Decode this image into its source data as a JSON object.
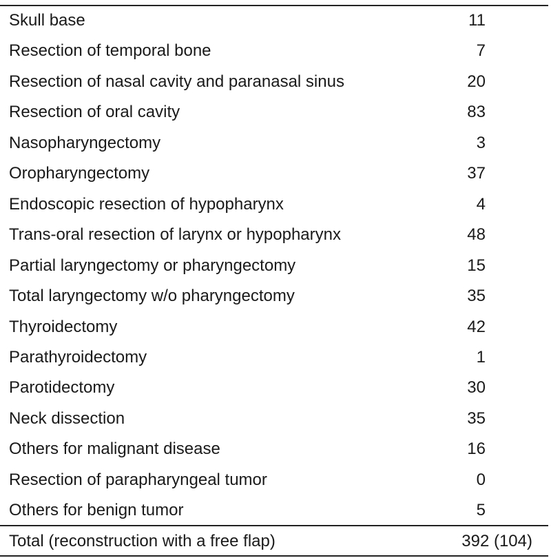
{
  "table": {
    "rows": [
      [
        "Skull base",
        11
      ],
      [
        "Resection of temporal bone",
        7
      ],
      [
        "Resection of nasal cavity and paranasal sinus",
        20
      ],
      [
        "Resection of oral cavity",
        83
      ],
      [
        "Nasopharyngectomy",
        3
      ],
      [
        "Oropharyngectomy",
        37
      ],
      [
        "Endoscopic resection of hypopharynx",
        4
      ],
      [
        "Trans-oral resection of larynx or hypopharynx",
        48
      ],
      [
        "Partial laryngectomy or pharyngectomy",
        15
      ],
      [
        "Total laryngectomy w/o pharyngectomy",
        35
      ],
      [
        "Thyroidectomy",
        42
      ],
      [
        "Parathyroidectomy",
        1
      ],
      [
        "Parotidectomy",
        30
      ],
      [
        "Neck dissection",
        35
      ],
      [
        "Others for malignant disease",
        16
      ],
      [
        "Resection of parapharyngeal tumor",
        0
      ],
      [
        "Others for benign tumor",
        5
      ]
    ],
    "total": [
      "Total (reconstruction with a free flap)",
      "392 (104)"
    ]
  }
}
